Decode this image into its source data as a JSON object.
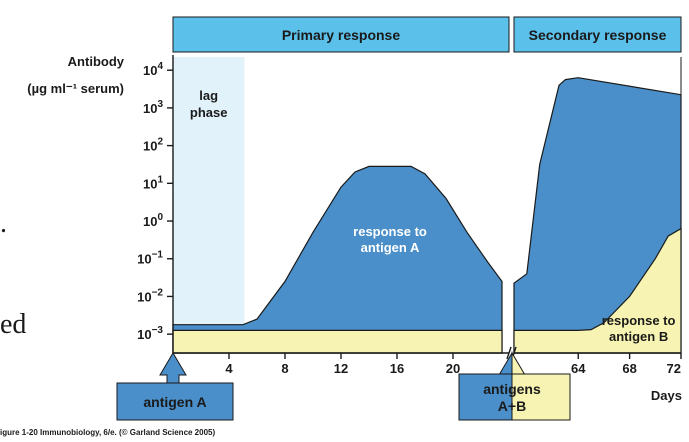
{
  "chart_data": {
    "type": "area",
    "panels": [
      "Primary response",
      "Secondary response"
    ],
    "ylabel": "Antibody",
    "ylabel_unit": "(µg ml⁻¹ serum)",
    "xlabel": "Days",
    "y_ticks": [
      {
        "exp": -3,
        "base": "10",
        "sup": "−3"
      },
      {
        "exp": -2,
        "base": "10",
        "sup": "−2"
      },
      {
        "exp": -1,
        "base": "10",
        "sup": "−1"
      },
      {
        "exp": 0,
        "base": "10",
        "sup": "0"
      },
      {
        "exp": 1,
        "base": "10",
        "sup": "1"
      },
      {
        "exp": 2,
        "base": "10",
        "sup": "2"
      },
      {
        "exp": 3,
        "base": "10",
        "sup": "3"
      },
      {
        "exp": 4,
        "base": "10",
        "sup": "4"
      }
    ],
    "ylim_log10": [
      -3.5,
      4.35
    ],
    "primary_xlim": [
      0,
      24
    ],
    "secondary_xlim": [
      59,
      72
    ],
    "primary_x_ticks": [
      4,
      8,
      12,
      16,
      20
    ],
    "secondary_x_ticks": [
      64,
      68,
      72
    ],
    "series": [
      {
        "name": "response to antigen A",
        "color": "#4a8fc9",
        "primary": [
          [
            0,
            -2.75
          ],
          [
            5,
            -2.75
          ],
          [
            6,
            -2.6
          ],
          [
            8,
            -1.6
          ],
          [
            10,
            -0.3
          ],
          [
            12,
            0.9
          ],
          [
            13,
            1.3
          ],
          [
            14,
            1.45
          ],
          [
            17,
            1.45
          ],
          [
            18,
            1.25
          ],
          [
            19.5,
            0.6
          ],
          [
            21,
            -0.3
          ],
          [
            22.5,
            -1.1
          ],
          [
            23.5,
            -1.6
          ]
        ],
        "secondary": [
          [
            59,
            -1.65
          ],
          [
            60,
            -1.4
          ],
          [
            61,
            1.5
          ],
          [
            62.5,
            3.6
          ],
          [
            63,
            3.75
          ],
          [
            64,
            3.8
          ],
          [
            72,
            3.35
          ]
        ]
      },
      {
        "name": "response to antigen B",
        "color": "#f7f4b3",
        "primary": [
          [
            0,
            -2.9
          ],
          [
            23.5,
            -2.9
          ]
        ],
        "secondary": [
          [
            59,
            -2.9
          ],
          [
            64,
            -2.9
          ],
          [
            65,
            -2.88
          ],
          [
            66,
            -2.7
          ],
          [
            68,
            -2.0
          ],
          [
            70,
            -1.0
          ],
          [
            71,
            -0.4
          ],
          [
            72,
            -0.2
          ]
        ]
      }
    ],
    "annotations": {
      "lag_phase": {
        "lines": [
          "lag",
          "phase"
        ],
        "x_range": [
          0,
          5.1
        ]
      },
      "response_a": [
        "response to",
        "antigen A"
      ],
      "response_b": [
        "response to",
        "antigen B"
      ],
      "antigen_a": {
        "label": "antigen A",
        "day": 0
      },
      "antigens_ab": {
        "lines": [
          "antigens",
          "A+B"
        ],
        "day": 59
      }
    },
    "colors": {
      "header": "#5bc0ea",
      "antigen_a": "#4a8fc9",
      "antigen_b": "#f7f4b3",
      "lag": "#e1f2fa"
    }
  },
  "side_text": [
    ".",
    "ed"
  ],
  "caption": "igure 1-20 Immunobiology, 6/e. (© Garland Science 2005)"
}
